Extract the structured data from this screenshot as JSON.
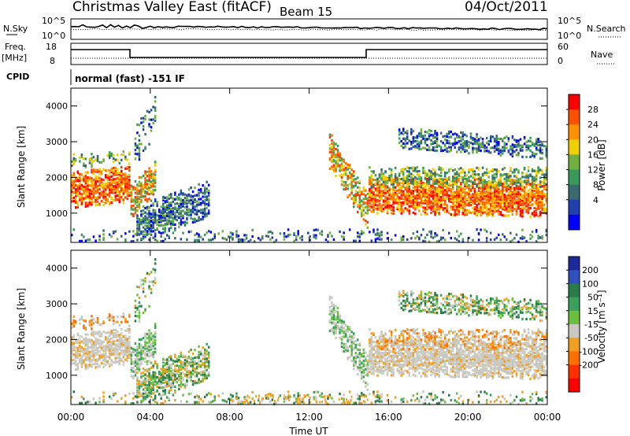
{
  "header": {
    "site": "Christmas Valley East (fitACF)",
    "beam": "Beam 15",
    "date": "04/Oct/2011"
  },
  "status_panels": {
    "nsky": {
      "label": "N.Sky",
      "ticks": [
        "10^5",
        "10^0"
      ]
    },
    "nsearch": {
      "label": "N.Search",
      "ticks": [
        "10^5",
        "10^0"
      ]
    },
    "freq": {
      "label_line1": "Freq.",
      "label_line2": "[MHz]",
      "ticks": [
        "18",
        "8"
      ]
    },
    "nave": {
      "label": "Nave",
      "ticks": [
        "60",
        "0"
      ]
    },
    "cpid": {
      "label": "CPID",
      "value": "normal (fast) -151 IF"
    }
  },
  "chart_data": [
    {
      "type": "heatmap",
      "name": "power",
      "ylabel": "Slant Range [km]",
      "xlabel": "Time UT",
      "xlim": [
        "00:00",
        "24:00"
      ],
      "ylim": [
        180,
        4500
      ],
      "yticks": [
        "1000",
        "2000",
        "3000",
        "4000"
      ],
      "colorbar": {
        "label": "Power [dB]",
        "ticks": [
          "4",
          "8",
          "12",
          "16",
          "20",
          "24",
          "28"
        ],
        "colors": [
          "#0000ff",
          "#2040b0",
          "#3a6a70",
          "#3a9a5a",
          "#70b040",
          "#f0d000",
          "#ff9000",
          "#ff5000",
          "#ff0000"
        ]
      }
    },
    {
      "type": "heatmap",
      "name": "velocity",
      "ylabel": "Slant Range [km]",
      "xlabel": "Time UT",
      "xlim": [
        "00:00",
        "24:00"
      ],
      "ylim": [
        180,
        4500
      ],
      "yticks": [
        "1000",
        "2000",
        "3000",
        "4000"
      ],
      "colorbar": {
        "label": "Velocity [m s⁻¹]",
        "ticks": [
          "200",
          "100",
          "50",
          "15",
          "-15",
          "-50",
          "-100",
          "-200"
        ],
        "colors": [
          "#1a2a9a",
          "#3050c0",
          "#2a7a4a",
          "#3aa05a",
          "#6cc040",
          "#c8c8c0",
          "#f0a020",
          "#ff7000",
          "#ff3000",
          "#ff0000"
        ]
      }
    }
  ],
  "x_axis": {
    "ticks": [
      "00:00",
      "04:00",
      "08:00",
      "12:00",
      "16:00",
      "20:00",
      "00:00"
    ],
    "label": "Time UT"
  }
}
